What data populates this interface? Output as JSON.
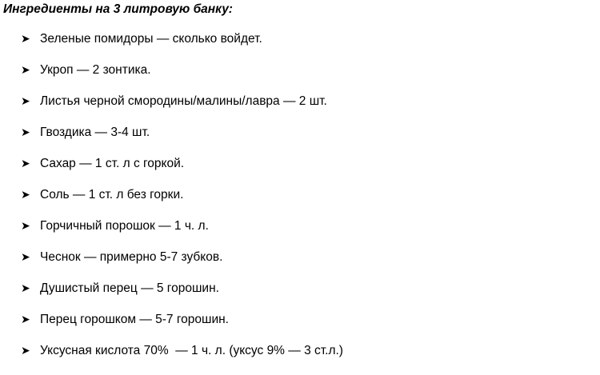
{
  "title": "Ингредиенты на 3 литровую банку:",
  "bullet_icon": "arrow-bullet",
  "items": [
    "Зеленые помидоры — сколько войдет.",
    "Укроп — 2 зонтика.",
    "Листья черной смородины/малины/лавра — 2 шт.",
    "Гвоздика — 3-4 шт.",
    "Сахар — 1 ст. л с горкой.",
    "Соль — 1 ст. л без горки.",
    "Горчичный порошок — 1 ч. л.",
    "Чеснок — примерно 5-7 зубков.",
    "Душистый перец — 5 горошин.",
    "Перец горошком — 5-7 горошин.",
    "Уксусная кислота 70%  — 1 ч. л. (уксус 9% — 3 ст.л.)"
  ]
}
